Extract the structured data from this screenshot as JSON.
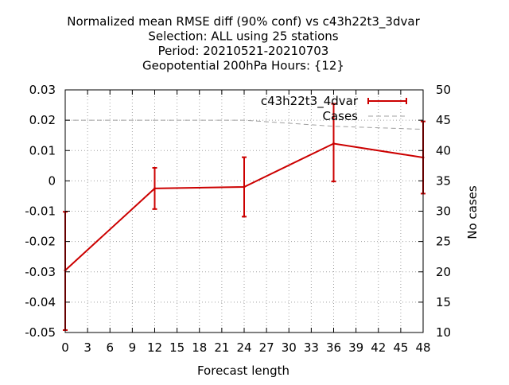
{
  "chart_data": {
    "type": "line",
    "title": [
      "Normalized mean RMSE diff (90% conf) vs c43h22t3_3dvar",
      "Selection: ALL using    25 stations",
      "Period: 20210521-20210703",
      "Geopotential 200hPa   Hours: {12}"
    ],
    "xlabel": "Forecast length",
    "ylabel": "",
    "y2label": "No cases",
    "xlim": [
      0,
      48
    ],
    "ylim": [
      -0.05,
      0.03
    ],
    "y2lim": [
      10,
      50
    ],
    "x_ticks": [
      0,
      3,
      6,
      9,
      12,
      15,
      18,
      21,
      24,
      27,
      30,
      33,
      36,
      39,
      42,
      45,
      48
    ],
    "y_ticks": [
      "0.03",
      "0.02",
      "0.01",
      "0",
      "-0.01",
      "-0.02",
      "-0.03",
      "-0.04",
      "-0.05"
    ],
    "y_tick_values": [
      0.03,
      0.02,
      0.01,
      0,
      -0.01,
      -0.02,
      -0.03,
      -0.04,
      -0.05
    ],
    "y2_ticks": [
      "50",
      "45",
      "40",
      "35",
      "30",
      "25",
      "20",
      "15",
      "10"
    ],
    "y2_tick_values": [
      50,
      45,
      40,
      35,
      30,
      25,
      20,
      15,
      10
    ],
    "grid": true,
    "legend_position": "top-right",
    "series": [
      {
        "name": "c43h22t3_4dvar",
        "color": "#cc0000",
        "x": [
          0,
          12,
          24,
          36,
          48
        ],
        "y": [
          -0.0295,
          -0.0025,
          -0.002,
          0.0123,
          0.0077
        ],
        "err_low": [
          -0.0492,
          -0.0093,
          -0.0118,
          -0.0002,
          -0.0042
        ],
        "err_high": [
          -0.0102,
          0.0043,
          0.0078,
          0.0254,
          0.0196
        ]
      },
      {
        "name": "Cases",
        "color": "#a0a0a0",
        "axis": "y2",
        "dashed": true,
        "x": [
          0,
          12,
          24,
          36,
          48
        ],
        "y": [
          45,
          45,
          45,
          44,
          43.5
        ]
      }
    ]
  }
}
